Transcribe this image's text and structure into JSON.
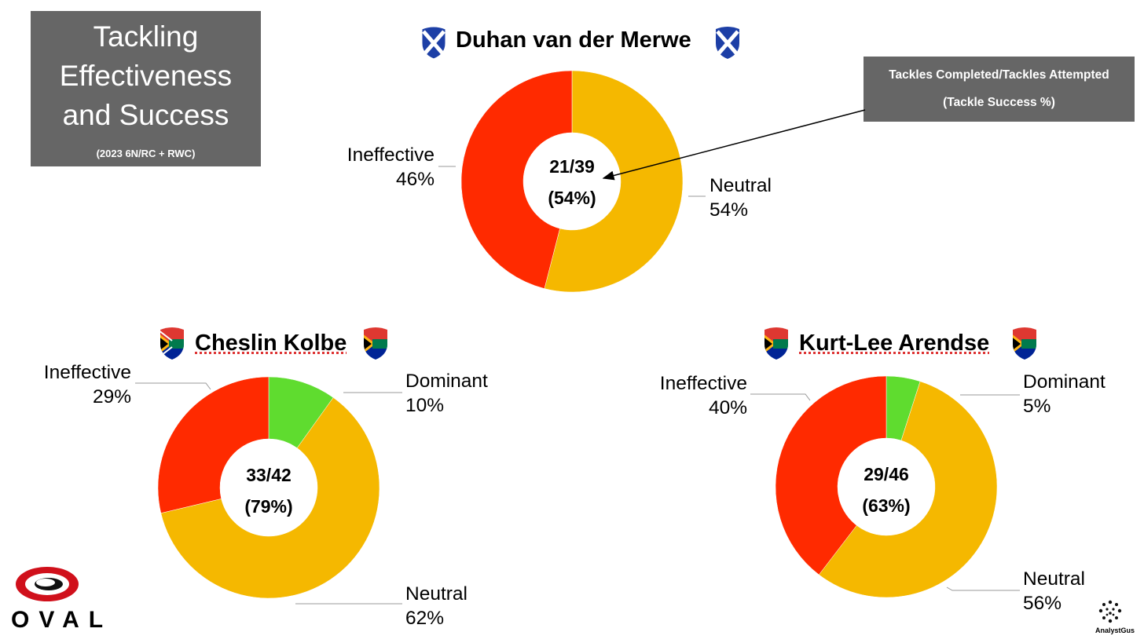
{
  "title": {
    "line1": "Tackling",
    "line2": "Effectiveness",
    "line3": "and Success",
    "subtitle": "(2023 6N/RC + RWC)"
  },
  "legend": {
    "line1": "Tackles Completed/Tackles Attempted",
    "line2": "(Tackle Success %)"
  },
  "colors": {
    "ineffective": "#ff2a00",
    "neutral": "#f5b800",
    "dominant": "#5fdc2f"
  },
  "players": [
    {
      "name": "Duhan van der Merwe",
      "flag": "scotland-flag-icon",
      "center_line1": "21/39",
      "center_line2": "(54%)",
      "labels": {
        "ineffective_name": "Ineffective",
        "ineffective_pct": "46%",
        "neutral_name": "Neutral",
        "neutral_pct": "54%"
      }
    },
    {
      "name": "Cheslin Kolbe",
      "flag": "south-africa-flag-icon",
      "center_line1": "33/42",
      "center_line2": "(79%)",
      "labels": {
        "ineffective_name": "Ineffective",
        "ineffective_pct": "29%",
        "dominant_name": "Dominant",
        "dominant_pct": "10%",
        "neutral_name": "Neutral",
        "neutral_pct": "62%"
      }
    },
    {
      "name": "Kurt-Lee Arendse",
      "flag": "south-africa-flag-icon",
      "center_line1": "29/46",
      "center_line2": "(63%)",
      "labels": {
        "ineffective_name": "Ineffective",
        "ineffective_pct": "40%",
        "dominant_name": "Dominant",
        "dominant_pct": "5%",
        "neutral_name": "Neutral",
        "neutral_pct": "56%"
      }
    }
  ],
  "chart_data": [
    {
      "type": "pie",
      "title": "Duhan van der Merwe",
      "categories": [
        "Neutral",
        "Ineffective"
      ],
      "values": [
        54,
        46
      ]
    },
    {
      "type": "pie",
      "title": "Cheslin Kolbe",
      "categories": [
        "Dominant",
        "Neutral",
        "Ineffective"
      ],
      "values": [
        10,
        62,
        29
      ]
    },
    {
      "type": "pie",
      "title": "Kurt-Lee Arendse",
      "categories": [
        "Dominant",
        "Neutral",
        "Ineffective"
      ],
      "values": [
        5,
        56,
        40
      ]
    }
  ],
  "brand": {
    "oval_text": "OVAL",
    "analyst_text": "AnalystGus"
  }
}
